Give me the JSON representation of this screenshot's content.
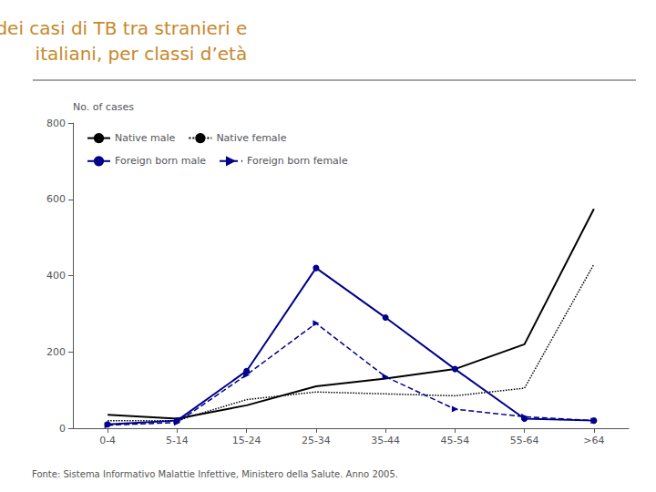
{
  "chart_data": {
    "type": "line",
    "title": "Distribuzione dei casi di TB tra stranieri e\nitaliani, per classi d’età",
    "subtitle": "Fonte: Sistema Informativo Malattie Infettive, Ministero della Salute. Anno 2005.",
    "y_label": "No. of cases",
    "categories": [
      "0-4",
      "5-14",
      "15-24",
      "25-34",
      "35-44",
      "45-54",
      "55-64",
      ">64"
    ],
    "series": [
      {
        "name": "Native male",
        "color": "#000000",
        "line_style": "solid",
        "marker": "none",
        "values": [
          35,
          25,
          60,
          110,
          130,
          155,
          220,
          575
        ]
      },
      {
        "name": "Native female",
        "color": "#000000",
        "line_style": "dotted",
        "marker": "none",
        "values": [
          20,
          20,
          75,
          95,
          90,
          85,
          105,
          430
        ]
      },
      {
        "name": "Foreign born male",
        "color": "#00008B",
        "line_style": "solid",
        "marker": "circle",
        "values": [
          10,
          20,
          150,
          420,
          290,
          155,
          25,
          20
        ]
      },
      {
        "name": "Foreign born female",
        "color": "#00008B",
        "line_style": "dashed",
        "marker": "triangle",
        "values": [
          8,
          15,
          140,
          275,
          135,
          50,
          30,
          20
        ]
      }
    ],
    "ylim": [
      0,
      800
    ],
    "yticks": [
      0,
      200,
      400,
      600,
      800
    ],
    "grid": false,
    "legend": "upper left"
  }
}
